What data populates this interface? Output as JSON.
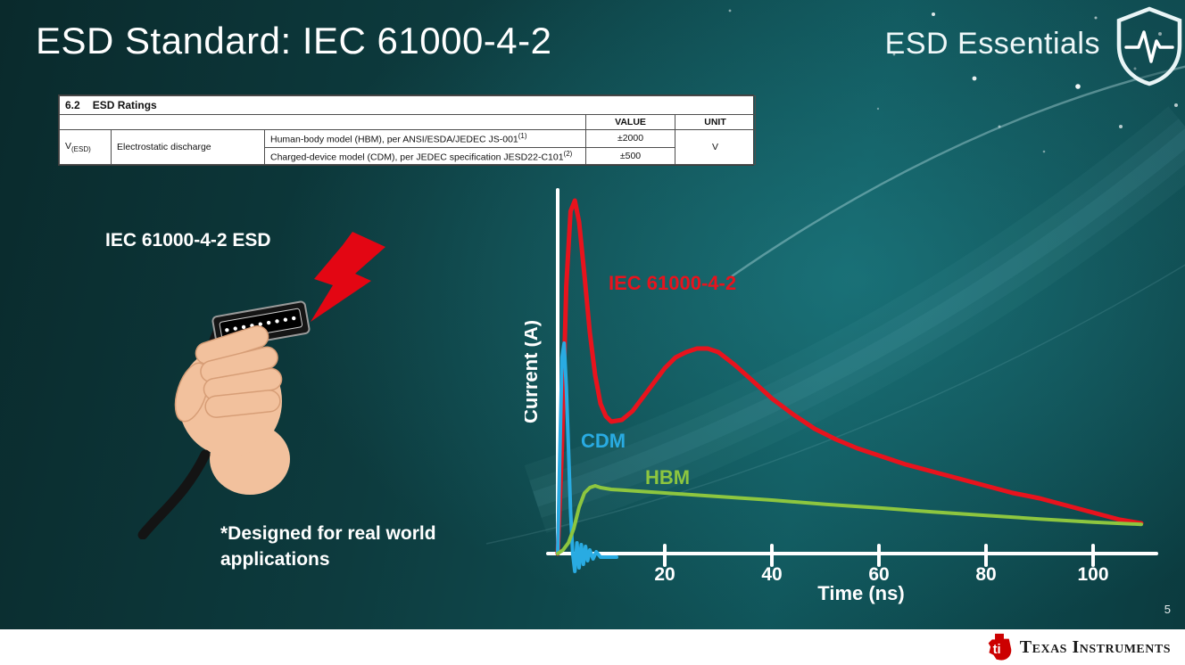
{
  "slide": {
    "title": "ESD Standard: IEC 61000-4-2",
    "series_badge": "ESD Essentials",
    "page_number": "5",
    "accent_red": "#e8131d",
    "background_teal": "#10555a"
  },
  "ratings_table": {
    "section_number": "6.2",
    "section_title": "ESD Ratings",
    "col_value": "VALUE",
    "col_unit": "UNIT",
    "param_symbol": "V",
    "param_symbol_sub": "(ESD)",
    "param_name": "Electrostatic discharge",
    "rows": [
      {
        "desc": "Human-body model (HBM), per ANSI/ESDA/JEDEC JS-001",
        "sup": "(1)",
        "value": "±2000"
      },
      {
        "desc": "Charged-device model (CDM), per JEDEC specification JESD22-C101",
        "sup": "(2)",
        "value": "±500"
      }
    ],
    "unit": "V"
  },
  "left_panel": {
    "esd_label": "IEC 61000-4-2 ESD",
    "note_line1": "*Designed for real world",
    "note_line2": "applications"
  },
  "footer": {
    "brand": "Texas Instruments"
  },
  "chart_data": {
    "type": "line",
    "title": "",
    "xlabel": "Time (ns)",
    "ylabel": "Current (A)",
    "x_ticks": [
      20,
      40,
      60,
      80,
      100
    ],
    "xlim": [
      0,
      110
    ],
    "ylim": [
      0,
      1.05
    ],
    "y_ticks": [],
    "grid": false,
    "legend": "inline-labels",
    "y_unit": "normalized peak current",
    "series": [
      {
        "name": "IEC 61000-4-2",
        "color": "#e8131d",
        "x": [
          0,
          0.8,
          1.6,
          2.4,
          3.2,
          4,
          5,
          6,
          7,
          8,
          9,
          10,
          12,
          14,
          16,
          18,
          20,
          22,
          24,
          26,
          28,
          30,
          33,
          36,
          40,
          44,
          48,
          52,
          56,
          60,
          65,
          70,
          75,
          80,
          85,
          90,
          95,
          100,
          105,
          109
        ],
        "y": [
          0,
          0.3,
          0.75,
          0.96,
          0.99,
          0.93,
          0.78,
          0.62,
          0.5,
          0.42,
          0.385,
          0.37,
          0.375,
          0.4,
          0.44,
          0.48,
          0.52,
          0.55,
          0.565,
          0.575,
          0.575,
          0.565,
          0.53,
          0.49,
          0.435,
          0.39,
          0.35,
          0.32,
          0.295,
          0.275,
          0.25,
          0.23,
          0.21,
          0.19,
          0.17,
          0.155,
          0.135,
          0.115,
          0.095,
          0.085
        ]
      },
      {
        "name": "CDM",
        "color": "#29abe2",
        "x": [
          0,
          0.4,
          0.8,
          1.2,
          1.6,
          2.0,
          2.4,
          2.8,
          3.2,
          3.6,
          4.0,
          4.4,
          4.8,
          5.2,
          5.6,
          6.0,
          6.6,
          7.2,
          8,
          9,
          10,
          11
        ],
        "y": [
          0,
          0.28,
          0.55,
          0.59,
          0.47,
          0.3,
          0.12,
          0.0,
          -0.05,
          0.03,
          -0.04,
          0.025,
          -0.03,
          0.02,
          -0.02,
          0.01,
          -0.015,
          0.005,
          -0.01,
          -0.01,
          -0.01,
          -0.01
        ]
      },
      {
        "name": "HBM",
        "color": "#8dc63f",
        "x": [
          0,
          1,
          2,
          3,
          4,
          5,
          6,
          7,
          8,
          10,
          12,
          15,
          20,
          25,
          30,
          40,
          50,
          60,
          70,
          80,
          90,
          100,
          109
        ],
        "y": [
          0,
          0.01,
          0.03,
          0.07,
          0.13,
          0.17,
          0.185,
          0.19,
          0.185,
          0.18,
          0.178,
          0.175,
          0.17,
          0.165,
          0.16,
          0.15,
          0.138,
          0.128,
          0.117,
          0.107,
          0.097,
          0.088,
          0.082
        ]
      }
    ]
  }
}
